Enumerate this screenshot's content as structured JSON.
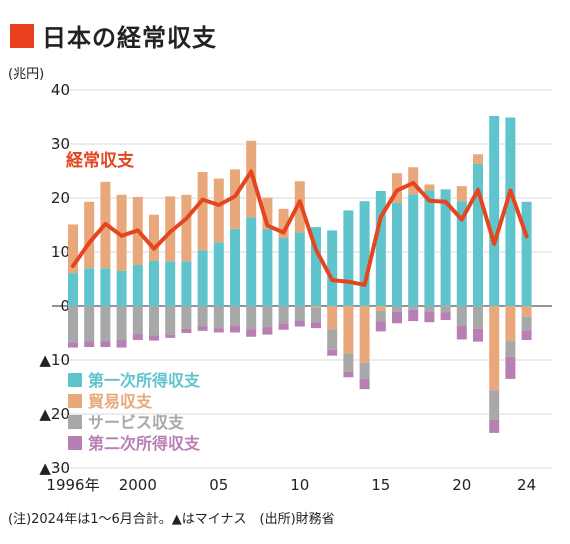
{
  "header": {
    "title": "日本の経常収支"
  },
  "note": "(注)2024年は1～6月合計。▲はマイナス　(出所)財務省",
  "chart_data": {
    "type": "bar",
    "subtype": "stacked bar with line overlay",
    "unit_label": "(兆円)",
    "ylim": [
      -30,
      40
    ],
    "yticks": [
      40,
      30,
      20,
      10,
      0,
      -10,
      -20,
      -30
    ],
    "ytick_labels": [
      "40",
      "30",
      "20",
      "10",
      "0",
      "▲10",
      "▲20",
      "▲30"
    ],
    "grid": "horizontal",
    "years": [
      1996,
      1997,
      1998,
      1999,
      2000,
      2001,
      2002,
      2003,
      2004,
      2005,
      2006,
      2007,
      2008,
      2009,
      2010,
      2011,
      2012,
      2013,
      2014,
      2015,
      2016,
      2017,
      2018,
      2019,
      2020,
      2021,
      2022,
      2023,
      2024
    ],
    "xtick_labels": [
      {
        "year": 1996,
        "label": "1996年"
      },
      {
        "year": 2000,
        "label": "2000"
      },
      {
        "year": 2005,
        "label": "05"
      },
      {
        "year": 2010,
        "label": "10"
      },
      {
        "year": 2015,
        "label": "15"
      },
      {
        "year": 2020,
        "label": "20"
      },
      {
        "year": 2024,
        "label": "24"
      }
    ],
    "series": [
      {
        "name": "第一次所得収支",
        "color": "#5fc4cc",
        "values": [
          6.1,
          7.0,
          7.0,
          6.5,
          7.6,
          8.4,
          8.3,
          8.3,
          10.3,
          11.8,
          14.3,
          16.4,
          14.3,
          12.6,
          13.6,
          14.6,
          14.0,
          17.7,
          19.4,
          21.3,
          19.1,
          20.7,
          21.4,
          21.6,
          19.4,
          26.3,
          35.2,
          34.9,
          19.3
        ]
      },
      {
        "name": "貿易収支",
        "color": "#e8a87c",
        "values": [
          9.0,
          12.3,
          16.0,
          14.1,
          12.6,
          8.5,
          12.0,
          12.3,
          14.5,
          11.8,
          11.0,
          14.2,
          5.8,
          5.4,
          9.5,
          -0.3,
          -4.3,
          -8.8,
          -10.5,
          -0.9,
          5.5,
          5.0,
          1.1,
          -0.1,
          2.8,
          1.8,
          -15.6,
          -6.5,
          -2.0
        ]
      },
      {
        "name": "サービス収支",
        "color": "#a8a8a8",
        "values": [
          -6.7,
          -6.5,
          -6.5,
          -6.3,
          -5.2,
          -5.4,
          -5.3,
          -4.2,
          -3.8,
          -4.1,
          -3.7,
          -4.3,
          -3.9,
          -3.2,
          -2.7,
          -2.7,
          -3.8,
          -3.4,
          -3.0,
          -1.9,
          -1.1,
          -0.7,
          -1.0,
          -1.1,
          -3.7,
          -4.2,
          -5.5,
          -2.9,
          -2.5
        ]
      },
      {
        "name": "第二次所得収支",
        "color": "#b87fb5",
        "values": [
          -1.0,
          -1.1,
          -1.1,
          -1.4,
          -1.1,
          -1.0,
          -0.6,
          -0.8,
          -0.8,
          -0.8,
          -1.2,
          -1.4,
          -1.4,
          -1.2,
          -1.1,
          -1.1,
          -1.1,
          -1.0,
          -1.9,
          -1.9,
          -2.1,
          -2.1,
          -2.0,
          -1.4,
          -2.5,
          -2.4,
          -2.4,
          -4.1,
          -1.8
        ]
      }
    ],
    "line": {
      "name": "経常収支",
      "color": "#e5451f",
      "values": [
        7.4,
        11.7,
        15.2,
        13.0,
        14.0,
        10.6,
        13.7,
        16.2,
        19.7,
        18.7,
        20.3,
        24.9,
        14.9,
        13.6,
        19.4,
        10.4,
        4.8,
        4.5,
        3.9,
        16.5,
        21.4,
        22.8,
        19.5,
        19.3,
        16.0,
        21.5,
        11.5,
        21.4,
        12.9
      ]
    }
  }
}
